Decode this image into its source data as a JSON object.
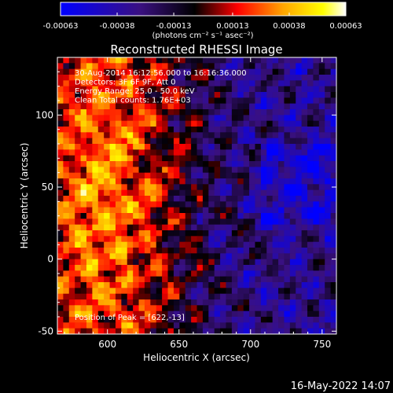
{
  "chart_data": {
    "type": "heatmap",
    "title": "Reconstructed RHESSI Image",
    "xlabel": "Heliocentric X (arcsec)",
    "ylabel": "Heliocentric Y (arcsec)",
    "xlim": [
      565,
      760
    ],
    "ylim": [
      -52,
      140
    ],
    "x_ticks": [
      600,
      650,
      700,
      750
    ],
    "y_ticks": [
      -50,
      0,
      50,
      100
    ],
    "colorbar": {
      "range": [
        -0.00063,
        0.00063
      ],
      "ticks": [
        -0.00063,
        -0.00038,
        -0.00013,
        0.00013,
        0.00038,
        0.00063
      ],
      "tick_labels": [
        "-0.00063",
        "-0.00038",
        "-0.00013",
        "0.00013",
        "0.00038",
        "0.00063"
      ],
      "unit_label": "(photons cm⁻² s⁻¹ asec⁻²)",
      "colors": [
        "#0000ff",
        "#3a1080",
        "#000000",
        "#ff0000",
        "#ffa500",
        "#ffff00",
        "#ffffff"
      ]
    },
    "annotations": [
      "30-Aug-2014 16:12:56.000 to 16:16:36.000",
      "Detectors: 3F 6F 9F, Att 0",
      "Energy Range: 25.0 - 50.0 keV",
      "Clean    Total counts: 1.76E+03"
    ],
    "peak_label": "Position of Peak = [622,-13]",
    "peak": [
      622,
      -13
    ]
  },
  "footer": {
    "timestamp": "16-May-2022 14:07"
  }
}
